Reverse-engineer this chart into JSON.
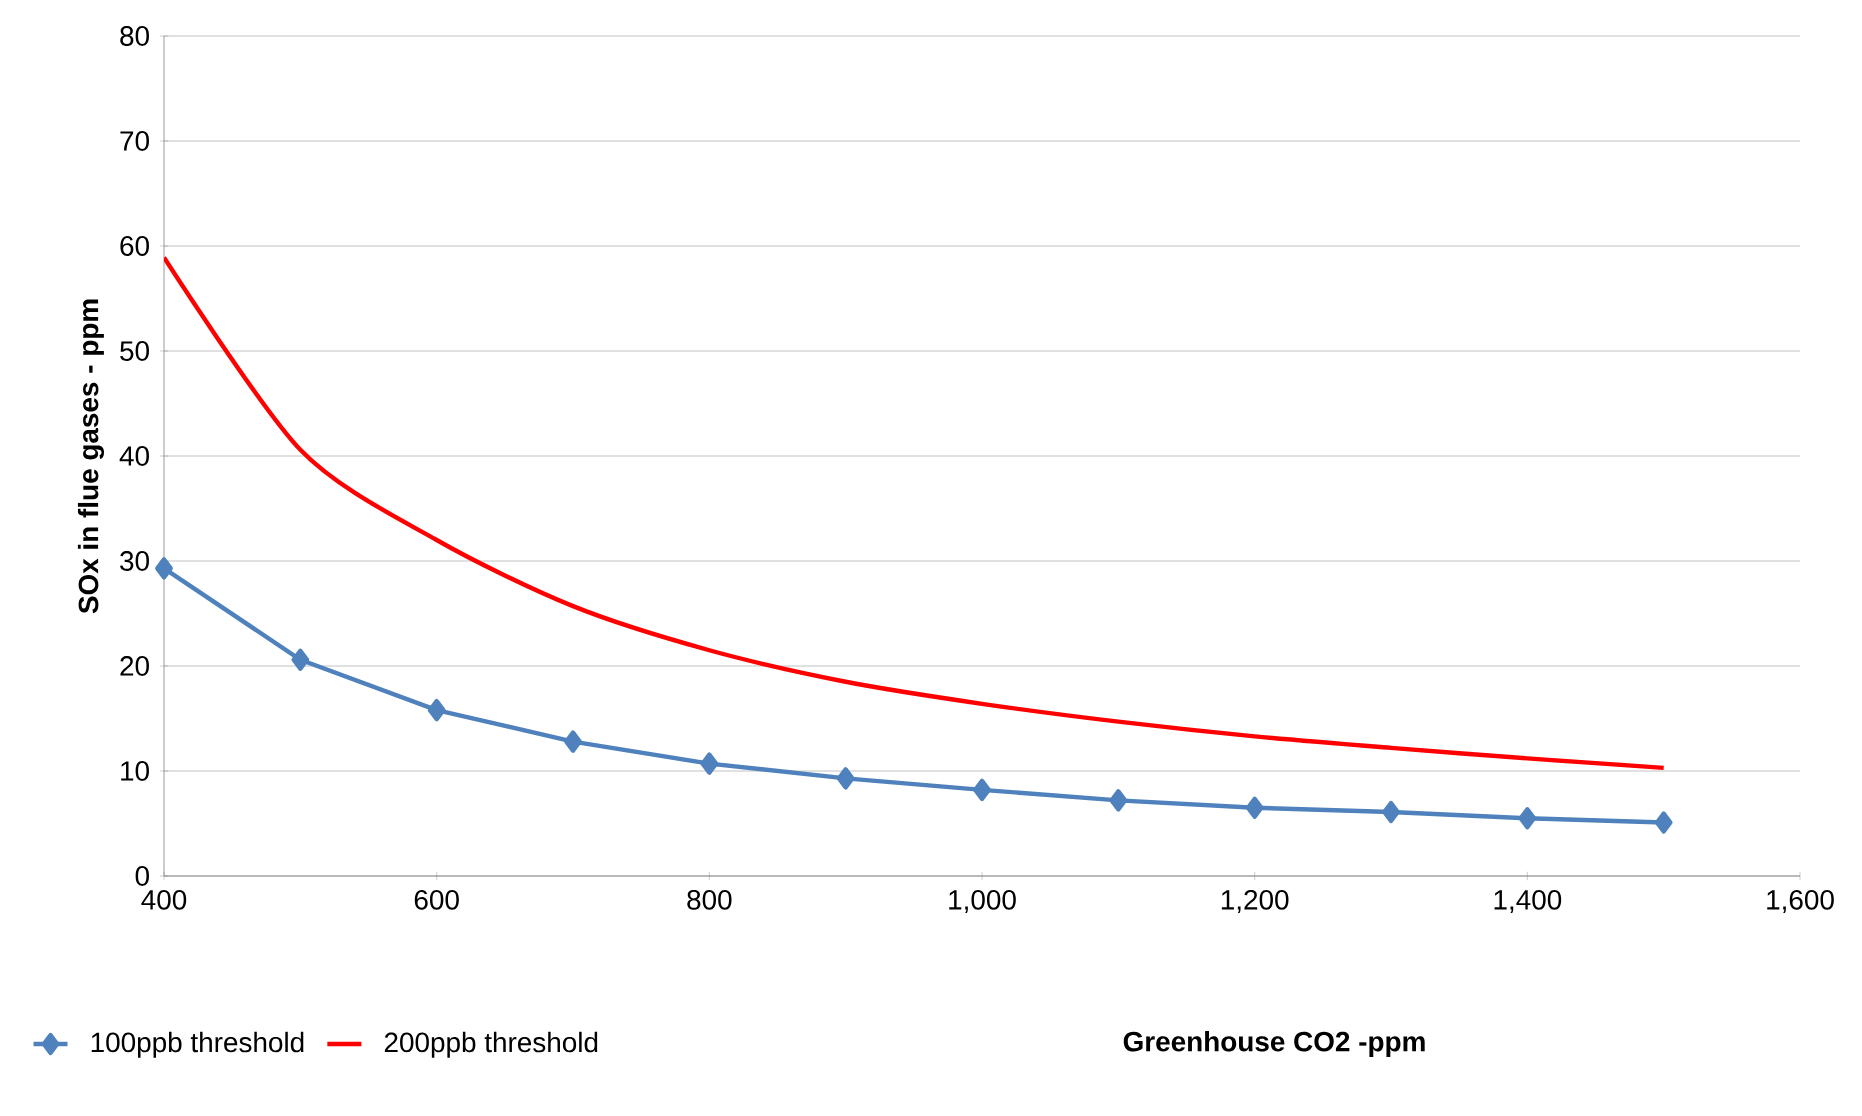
{
  "chart_data": {
    "type": "line",
    "xlabel": "Greenhouse CO2  -ppm",
    "ylabel": "SOx in flue gases - ppm",
    "x": [
      400,
      500,
      600,
      700,
      800,
      900,
      1000,
      1100,
      1200,
      1300,
      1400,
      1500
    ],
    "series": [
      {
        "name": "100ppb threshold",
        "color": "#4f81bd",
        "marker": "diamond",
        "values": [
          29.3,
          20.6,
          15.8,
          12.8,
          10.7,
          9.3,
          8.2,
          7.2,
          6.5,
          6.1,
          5.5,
          5.1
        ]
      },
      {
        "name": "200ppb threshold",
        "color": "#ff0000",
        "marker": "none",
        "values": [
          58.9,
          40.6,
          32,
          25.7,
          21.5,
          18.5,
          16.4,
          14.7,
          13.3,
          12.2,
          11.2,
          10.3
        ]
      }
    ],
    "xlim": [
      400,
      1600
    ],
    "ylim": [
      0,
      80
    ],
    "xticks": [
      400,
      600,
      800,
      {
        "value": 1000,
        "label": "1,000"
      },
      {
        "value": 1200,
        "label": "1,200"
      },
      {
        "value": 1400,
        "label": "1,400"
      },
      {
        "value": 1600,
        "label": "1,600"
      }
    ],
    "yticks": [
      0,
      10,
      20,
      30,
      40,
      50,
      60,
      70,
      80
    ],
    "grid": "y",
    "legend": "bottom"
  }
}
